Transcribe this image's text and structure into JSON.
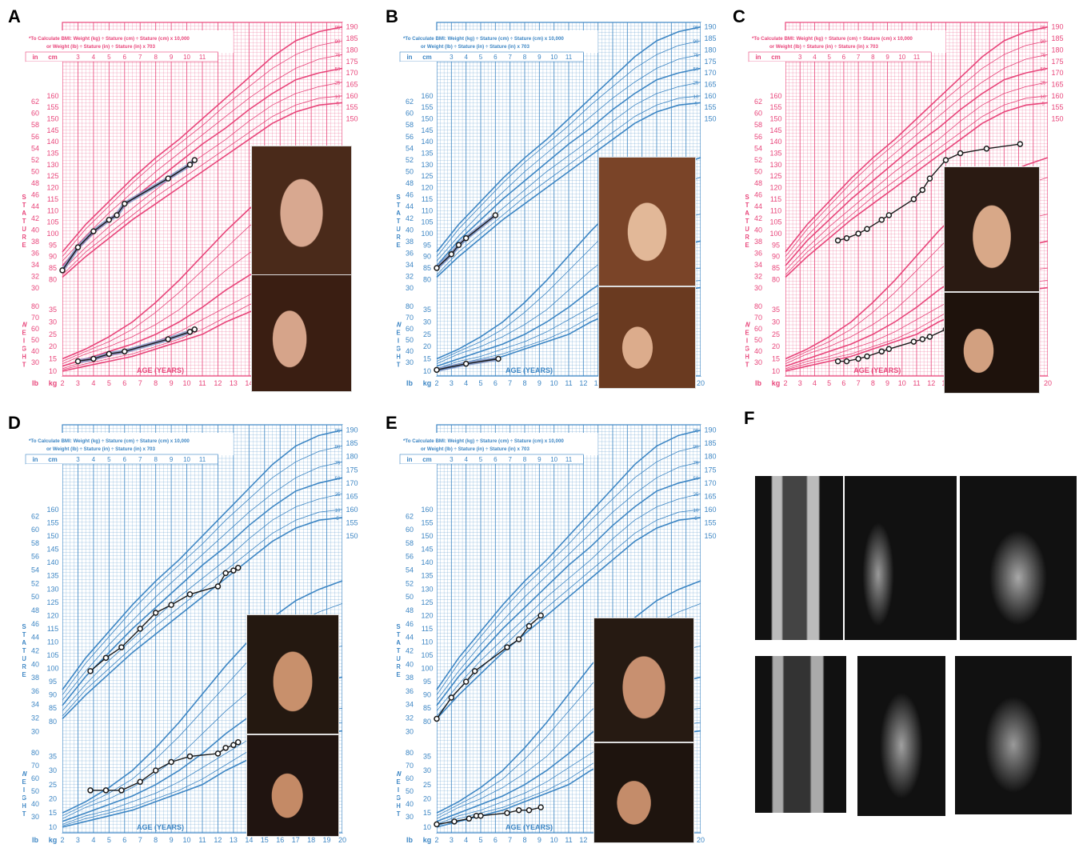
{
  "panel_labels": [
    "A",
    "B",
    "C",
    "D",
    "E",
    "F"
  ],
  "chart_text": {
    "bmi_line1": "*To Calculate BMI: Weight (kg) ÷ Stature (cm) ÷ Stature (cm) x 10,000",
    "bmi_line2": "or Weight (lb) ÷ Stature (in) ÷ Stature (in) x 703",
    "age_label": "AGE (YEARS)",
    "stature_label": "STATURE",
    "weight_label": "WEIGHT",
    "unit_in": "in",
    "unit_cm": "cm",
    "unit_lb": "lb",
    "unit_kg": "kg"
  },
  "ages_axis": [
    2,
    3,
    4,
    5,
    6,
    7,
    8,
    9,
    10,
    11,
    12,
    13,
    14,
    15,
    16,
    17,
    18,
    19,
    20
  ],
  "top_ages": [
    3,
    4,
    5,
    6,
    7,
    8,
    9,
    10,
    11
  ],
  "stature_cm_ticks": [
    80,
    85,
    90,
    95,
    100,
    105,
    110,
    115,
    120,
    125,
    130,
    135,
    140,
    145,
    150,
    155,
    160
  ],
  "stature_in_ticks": [
    30,
    32,
    34,
    36,
    38,
    40,
    42,
    44,
    46,
    48,
    50,
    52,
    54,
    56,
    58,
    60,
    62
  ],
  "right_cm_ticks": [
    150,
    155,
    160,
    165,
    170,
    175,
    180,
    185,
    190
  ],
  "weight_kg_ticks": [
    10,
    15,
    20,
    25,
    30,
    35
  ],
  "weight_lb_ticks": [
    30,
    40,
    50,
    60,
    70,
    80
  ],
  "percentile_labels": [
    "95",
    "90",
    "75",
    "50",
    "25",
    "10",
    "5"
  ],
  "colors": {
    "girls": "#e8457a",
    "boys": "#3d86c4",
    "patient_line": "#1a1a1a"
  },
  "chart_data": [
    {
      "panel": "A",
      "type": "line",
      "chart": "girls",
      "series": [
        {
          "name": "stature",
          "x": [
            2,
            3,
            4,
            5,
            5.5,
            6,
            8.8,
            10.2,
            10.5
          ],
          "y": [
            84,
            94,
            101,
            106,
            108,
            113,
            124,
            130,
            132
          ]
        },
        {
          "name": "weight",
          "x": [
            3,
            4,
            5,
            6,
            8.8,
            10.2,
            10.5
          ],
          "y": [
            14,
            15,
            17,
            18,
            23,
            26,
            27
          ]
        }
      ]
    },
    {
      "panel": "B",
      "type": "line",
      "chart": "boys",
      "series": [
        {
          "name": "stature",
          "x": [
            2,
            3,
            3.5,
            4,
            6
          ],
          "y": [
            85,
            91,
            95,
            98,
            108
          ]
        },
        {
          "name": "weight",
          "x": [
            2,
            4,
            6.2
          ],
          "y": [
            10.5,
            13,
            15
          ]
        }
      ]
    },
    {
      "panel": "C",
      "type": "line",
      "chart": "girls",
      "series": [
        {
          "name": "stature",
          "x": [
            5.6,
            6.2,
            7,
            7.6,
            8.6,
            9.1,
            10.8,
            11.4,
            11.9,
            13,
            14,
            15.8,
            18.1
          ],
          "y": [
            97,
            98,
            100,
            102,
            106,
            108,
            115,
            119,
            124,
            132,
            135,
            137,
            139
          ]
        },
        {
          "name": "weight",
          "x": [
            5.6,
            6.2,
            7,
            7.6,
            8.6,
            9.1,
            10.8,
            11.4,
            11.9,
            13,
            14
          ],
          "y": [
            14,
            14,
            15,
            16,
            18,
            19,
            22,
            23,
            24,
            27,
            29
          ]
        }
      ]
    },
    {
      "panel": "D",
      "type": "line",
      "chart": "boys",
      "series": [
        {
          "name": "stature",
          "x": [
            3.8,
            4.8,
            5.8,
            7,
            8,
            9,
            10.2,
            12,
            12.5,
            13,
            13.3
          ],
          "y": [
            99,
            104,
            108,
            115,
            121,
            124,
            128,
            131,
            136,
            137,
            138
          ]
        },
        {
          "name": "weight",
          "x": [
            3.8,
            4.8,
            5.8,
            7,
            8,
            9,
            10.2,
            12,
            12.5,
            13,
            13.3
          ],
          "y": [
            23,
            23,
            23,
            26,
            30,
            33,
            35,
            36,
            38,
            39,
            40
          ]
        }
      ]
    },
    {
      "panel": "E",
      "type": "line",
      "chart": "boys",
      "series": [
        {
          "name": "stature",
          "x": [
            2,
            3,
            4,
            4.6,
            6.8,
            7.6,
            8.3,
            9.1
          ],
          "y": [
            81,
            89,
            95,
            99,
            108,
            111,
            116,
            120
          ]
        },
        {
          "name": "weight",
          "x": [
            2,
            3.2,
            4.2,
            4.7,
            5,
            6.8,
            7.6,
            8.3,
            9.1
          ],
          "y": [
            11,
            12,
            13,
            14,
            14,
            15,
            16,
            16,
            17
          ]
        }
      ]
    }
  ]
}
